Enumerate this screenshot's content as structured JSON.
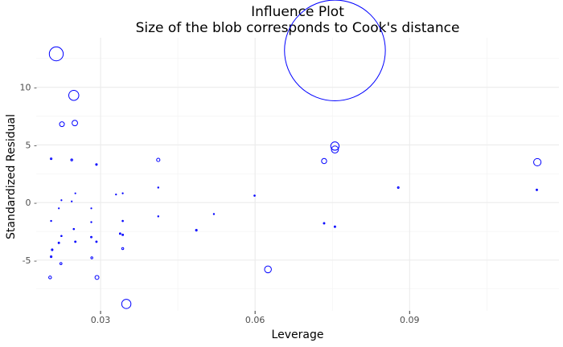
{
  "chart_data": {
    "type": "scatter",
    "title": "Influence Plot",
    "subtitle": "Size of the blob corresponds to Cook's distance",
    "xlabel": "Leverage",
    "ylabel": "Standardized Residual",
    "xlim": [
      0.0175,
      0.119
    ],
    "ylim": [
      -9.4,
      14.3
    ],
    "x_ticks": [
      0.03,
      0.06,
      0.09
    ],
    "x_tick_labels": [
      "0.03",
      "0.06",
      "0.09"
    ],
    "y_ticks": [
      10,
      5,
      0,
      -5
    ],
    "y_tick_labels": [
      "10 -",
      "5 -",
      "0 -",
      "-5 -"
    ],
    "grid": true,
    "marker": "hollow circle",
    "marker_color": "#0000ff",
    "points": [
      {
        "leverage": 0.0755,
        "residual": 13.2,
        "cooks": 6.55
      },
      {
        "leverage": 0.0214,
        "residual": 12.9,
        "cooks": 0.125
      },
      {
        "leverage": 0.0248,
        "residual": 9.3,
        "cooks": 0.065
      },
      {
        "leverage": 0.0225,
        "residual": 6.8,
        "cooks": 0.015
      },
      {
        "leverage": 0.025,
        "residual": 6.9,
        "cooks": 0.02
      },
      {
        "leverage": 0.0204,
        "residual": 3.8,
        "cooks": 0.0015
      },
      {
        "leverage": 0.0244,
        "residual": 3.7,
        "cooks": 0.002
      },
      {
        "leverage": 0.0292,
        "residual": 3.3,
        "cooks": 0.0015
      },
      {
        "leverage": 0.0412,
        "residual": 3.7,
        "cooks": 0.007
      },
      {
        "leverage": 0.0755,
        "residual": 4.9,
        "cooks": 0.045
      },
      {
        "leverage": 0.0755,
        "residual": 4.6,
        "cooks": 0.032
      },
      {
        "leverage": 0.0734,
        "residual": 3.6,
        "cooks": 0.017
      },
      {
        "leverage": 0.1148,
        "residual": 3.5,
        "cooks": 0.035
      },
      {
        "leverage": 0.0878,
        "residual": 1.3,
        "cooks": 0.0015
      },
      {
        "leverage": 0.1147,
        "residual": 1.1,
        "cooks": 0.0012
      },
      {
        "leverage": 0.0599,
        "residual": 0.6,
        "cooks": 0.0009
      },
      {
        "leverage": 0.0412,
        "residual": 1.3,
        "cooks": 0.0006
      },
      {
        "leverage": 0.0343,
        "residual": 0.8,
        "cooks": 0.0005
      },
      {
        "leverage": 0.033,
        "residual": 0.7,
        "cooks": 0.0005
      },
      {
        "leverage": 0.0224,
        "residual": 0.2,
        "cooks": 0.0004
      },
      {
        "leverage": 0.0244,
        "residual": 0.1,
        "cooks": 0.0004
      },
      {
        "leverage": 0.0251,
        "residual": 0.8,
        "cooks": 0.0004
      },
      {
        "leverage": 0.0219,
        "residual": -0.5,
        "cooks": 0.0004
      },
      {
        "leverage": 0.0282,
        "residual": -0.5,
        "cooks": 0.0004
      },
      {
        "leverage": 0.0204,
        "residual": -1.6,
        "cooks": 0.0006
      },
      {
        "leverage": 0.0282,
        "residual": -1.7,
        "cooks": 0.0006
      },
      {
        "leverage": 0.0343,
        "residual": -1.6,
        "cooks": 0.0008
      },
      {
        "leverage": 0.0412,
        "residual": -1.2,
        "cooks": 0.0006
      },
      {
        "leverage": 0.052,
        "residual": -1.0,
        "cooks": 0.0006
      },
      {
        "leverage": 0.0734,
        "residual": -1.8,
        "cooks": 0.0012
      },
      {
        "leverage": 0.0755,
        "residual": -2.1,
        "cooks": 0.0013
      },
      {
        "leverage": 0.0248,
        "residual": -2.3,
        "cooks": 0.0008
      },
      {
        "leverage": 0.0224,
        "residual": -2.9,
        "cooks": 0.0008
      },
      {
        "leverage": 0.0282,
        "residual": -3.0,
        "cooks": 0.0012
      },
      {
        "leverage": 0.0338,
        "residual": -2.7,
        "cooks": 0.0012
      },
      {
        "leverage": 0.0343,
        "residual": -2.8,
        "cooks": 0.0012
      },
      {
        "leverage": 0.0486,
        "residual": -2.4,
        "cooks": 0.0015
      },
      {
        "leverage": 0.0219,
        "residual": -3.5,
        "cooks": 0.0012
      },
      {
        "leverage": 0.0251,
        "residual": -3.4,
        "cooks": 0.0012
      },
      {
        "leverage": 0.0292,
        "residual": -3.4,
        "cooks": 0.0012
      },
      {
        "leverage": 0.0206,
        "residual": -4.1,
        "cooks": 0.0015
      },
      {
        "leverage": 0.0343,
        "residual": -4.0,
        "cooks": 0.0025
      },
      {
        "leverage": 0.0204,
        "residual": -4.7,
        "cooks": 0.0015
      },
      {
        "leverage": 0.0283,
        "residual": -4.8,
        "cooks": 0.0025
      },
      {
        "leverage": 0.0223,
        "residual": -5.3,
        "cooks": 0.003
      },
      {
        "leverage": 0.0625,
        "residual": -5.8,
        "cooks": 0.03
      },
      {
        "leverage": 0.0202,
        "residual": -6.5,
        "cooks": 0.005
      },
      {
        "leverage": 0.0293,
        "residual": -6.5,
        "cooks": 0.01
      },
      {
        "leverage": 0.035,
        "residual": -8.8,
        "cooks": 0.055
      }
    ]
  }
}
